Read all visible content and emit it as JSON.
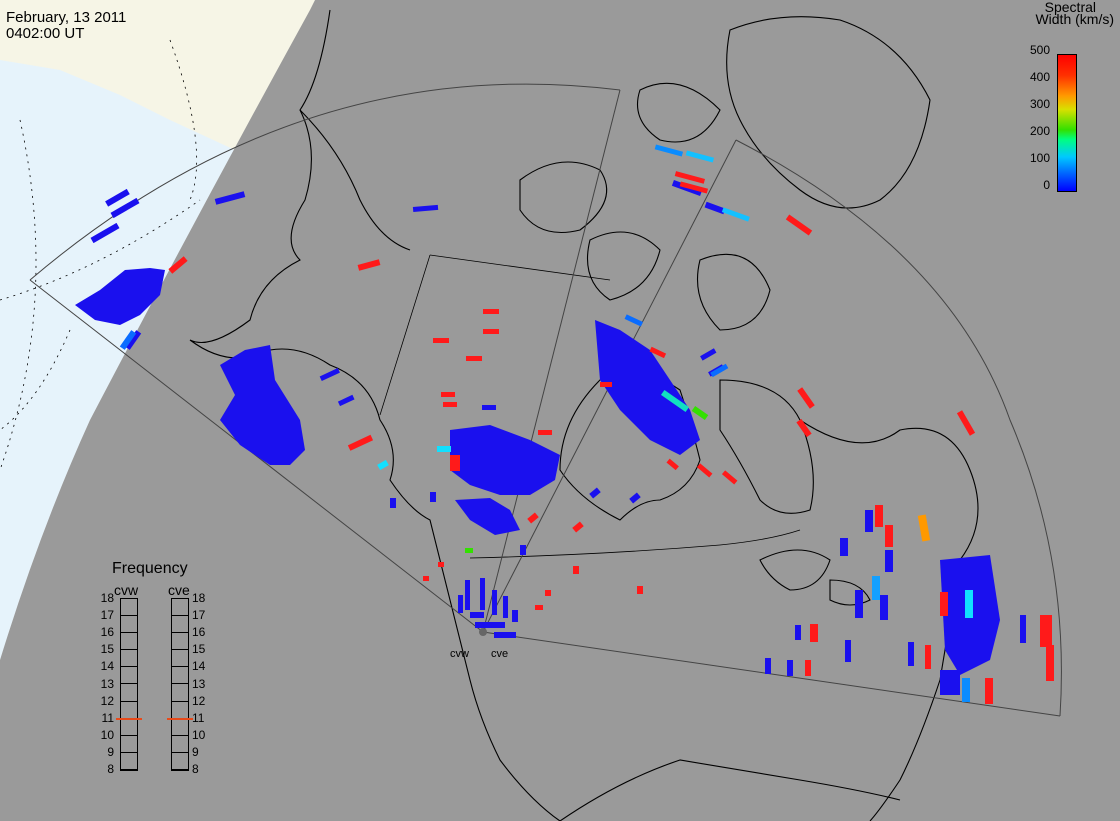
{
  "header": {
    "date": "February, 13 2011",
    "time": "0402:00 UT"
  },
  "colorbar": {
    "title_line1": "Spectral",
    "title_line2": "Width (km/s)",
    "ticks": [
      "500",
      "400",
      "300",
      "200",
      "100",
      "0"
    ],
    "colors": [
      "#0000ff",
      "#0066ff",
      "#00c8ff",
      "#00ff80",
      "#33e000",
      "#d8e000",
      "#ff9900",
      "#ff3000",
      "#ff0000"
    ]
  },
  "radars": {
    "west": "cvw",
    "east": "cve"
  },
  "frequency": {
    "title": "Frequency",
    "left_label": "cvw",
    "right_label": "cve",
    "scale": [
      "18",
      "17",
      "16",
      "15",
      "14",
      "13",
      "12",
      "11",
      "10",
      "9",
      "8"
    ],
    "cvw_mhz": 10.9,
    "cve_mhz": 10.9
  },
  "map": {
    "ocean_color": "#9a9a9a",
    "daylight_color": "#e8f4fb",
    "land_day_color": "#f6f5e6",
    "low_width_color": "#1a10ee",
    "high_width_color": "#ff1a1a"
  }
}
